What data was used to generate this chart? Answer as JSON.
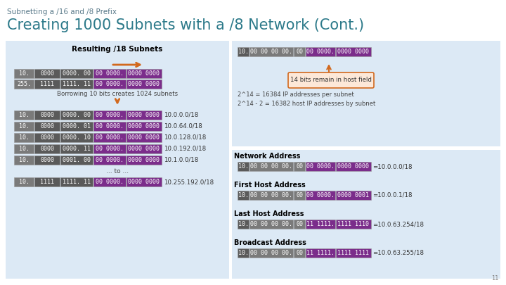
{
  "title_small": "Subnetting a /16 and /8 Prefix",
  "title_large": "Creating 1000 Subnets with a /8 Network (Cont.)",
  "bg_color": "#ffffff",
  "slide_bg": "#dce9f5",
  "title_small_color": "#5a7a8a",
  "title_large_color": "#2d7a8a",
  "left_panel_title": "Resulting /18 Subnets",
  "left_rows": [
    {
      "col1": "10.",
      "col2": "0000",
      "col3": "0000. 00",
      "col4": "00 0000.",
      "col5": "0000 0000",
      "c1_bg": "#7a7a7a",
      "c23_bg": "#5a5a5a",
      "c45_bg": "#7b2d8b"
    },
    {
      "col1": "255.",
      "col2": "1111",
      "col3": "1111. 11",
      "col4": "00 0000.",
      "col5": "0000 0000",
      "c1_bg": "#7a7a7a",
      "c23_bg": "#5a5a5a",
      "c45_bg": "#7b2d8b"
    }
  ],
  "borrow_text": "Borrowing 10 bits creates 1024 subnets",
  "subnet_rows": [
    {
      "col1": "10.",
      "col2": "0000",
      "col3": "0000. 00",
      "col4": "00 0000.",
      "col5": "0000 0000",
      "label": "10.0.0.0/18"
    },
    {
      "col1": "10.",
      "col2": "0000",
      "col3": "0000. 01",
      "col4": "00 0000.",
      "col5": "0000 0000",
      "label": "10.0.64.0/18"
    },
    {
      "col1": "10.",
      "col2": "0000",
      "col3": "0000. 10",
      "col4": "00 0000.",
      "col5": "0000 0000",
      "label": "10.0.128.0/18"
    },
    {
      "col1": "10.",
      "col2": "0000",
      "col3": "0000. 11",
      "col4": "00 0000.",
      "col5": "0000 0000",
      "label": "10.0.192.0/18"
    },
    {
      "col1": "10.",
      "col2": "0000",
      "col3": "0001. 00",
      "col4": "00 0000.",
      "col5": "0000 0000",
      "label": "10.1.0.0/18"
    },
    {
      "col1": "10.",
      "col2": "1111",
      "col3": "1111. 11",
      "col4": "00 0000.",
      "col5": "0000 0000",
      "label": "10.255.192.0/18"
    }
  ],
  "to_text": "... to ...",
  "right_top_row": {
    "col1": "10.",
    "col2": "00 00 00 00.",
    "col3": "00",
    "col4": "00 0000.",
    "col5": "0000 0000"
  },
  "host_box_text": "14 bits remain in host field",
  "calc_text1": "2^14 = 16384 IP addresses per subnet",
  "calc_text2": "2^14 - 2 = 16382 host IP addresses by subnet",
  "right_sections": [
    {
      "label": "Network Address",
      "col1": "10.",
      "col2": "00 00 00 00.",
      "col3": "00",
      "col4": "00 0000.",
      "col5": "0000 0000",
      "result": "=10.0.0.0/18"
    },
    {
      "label": "First Host Address",
      "col1": "10.",
      "col2": "00 00 00 00.",
      "col3": "00",
      "col4": "00 0000.",
      "col5": "0000 0001",
      "result": "=10.0.0.1/18"
    },
    {
      "label": "Last Host Address",
      "col1": "10.",
      "col2": "00 00 00 00.",
      "col3": "00",
      "col4": "11 1111.",
      "col5": "1111 1110",
      "result": "=10.0.63.254/18"
    },
    {
      "label": "Broadcast Address",
      "col1": "10.",
      "col2": "00 00 00 00.",
      "col3": "00",
      "col4": "11 1111.",
      "col5": "1111 1111",
      "result": "=10.0.63.255/18"
    }
  ],
  "dark_gray": "#5a5a5a",
  "med_gray": "#7a7a7a",
  "purple": "#7b2d8b",
  "white": "#ffffff",
  "black": "#000000",
  "orange": "#d2691e",
  "host_box_fill": "#fde8d8",
  "host_box_edge": "#d2691e"
}
